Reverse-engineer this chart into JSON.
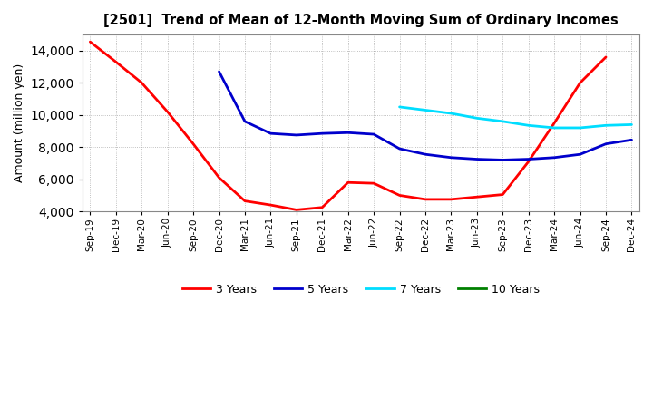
{
  "title": "[2501]  Trend of Mean of 12-Month Moving Sum of Ordinary Incomes",
  "ylabel": "Amount (million yen)",
  "ylim": [
    4000,
    15000
  ],
  "yticks": [
    4000,
    6000,
    8000,
    10000,
    12000,
    14000
  ],
  "background_color": "#ffffff",
  "grid_color": "#999999",
  "x_labels": [
    "Sep-19",
    "Dec-19",
    "Mar-20",
    "Jun-20",
    "Sep-20",
    "Dec-20",
    "Mar-21",
    "Jun-21",
    "Sep-21",
    "Dec-21",
    "Mar-22",
    "Jun-22",
    "Sep-22",
    "Dec-22",
    "Mar-23",
    "Jun-23",
    "Sep-23",
    "Dec-23",
    "Mar-24",
    "Jun-24",
    "Sep-24",
    "Dec-24"
  ],
  "series": [
    {
      "name": "3 Years",
      "color": "#ff0000",
      "linewidth": 2.0,
      "xs": [
        0,
        1,
        2,
        3,
        4,
        5,
        6,
        7,
        8,
        9,
        10,
        11,
        12,
        13,
        14,
        15,
        16,
        17,
        18,
        19,
        20
      ],
      "ys": [
        14550,
        13300,
        12000,
        10200,
        8200,
        6100,
        4650,
        4400,
        4100,
        4250,
        5800,
        5750,
        5000,
        4750,
        4750,
        4900,
        5050,
        7100,
        9500,
        12000,
        13600
      ]
    },
    {
      "name": "5 Years",
      "color": "#0000cc",
      "linewidth": 2.0,
      "xs": [
        5,
        6,
        7,
        8,
        9,
        10,
        11,
        12,
        13,
        14,
        15,
        16,
        17,
        18,
        19,
        20,
        21
      ],
      "ys": [
        12700,
        9600,
        8850,
        8750,
        8850,
        8900,
        8800,
        7900,
        7550,
        7350,
        7250,
        7200,
        7250,
        7350,
        7550,
        8200,
        8450
      ]
    },
    {
      "name": "7 Years",
      "color": "#00ddff",
      "linewidth": 2.0,
      "xs": [
        12,
        13,
        14,
        15,
        16,
        17,
        18,
        19,
        20,
        21
      ],
      "ys": [
        10500,
        10300,
        10100,
        9800,
        9600,
        9350,
        9200,
        9200,
        9350,
        9400
      ]
    },
    {
      "name": "10 Years",
      "color": "#008000",
      "linewidth": 2.0,
      "xs": [],
      "ys": []
    }
  ],
  "legend_labels": [
    "3 Years",
    "5 Years",
    "7 Years",
    "10 Years"
  ],
  "legend_colors": [
    "#ff0000",
    "#0000cc",
    "#00ddff",
    "#008000"
  ]
}
